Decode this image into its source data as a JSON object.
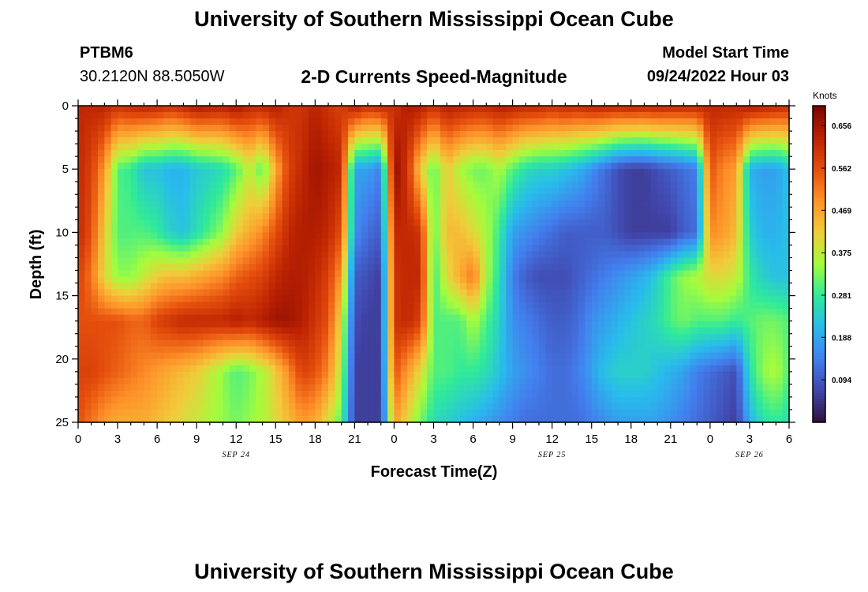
{
  "header": {
    "main_title": "University of Southern Mississippi Ocean Cube",
    "station_id": "PTBM6",
    "station_coords": "30.2120N  88.5050W",
    "chart_title": "2-D Currents Speed-Magnitude",
    "model_start_label": "Model Start Time",
    "model_start_value": "09/24/2022 Hour 03"
  },
  "footer": {
    "title": "University of Southern Mississippi Ocean Cube"
  },
  "chart_data": {
    "type": "heatmap",
    "title": "2-D Currents Speed-Magnitude",
    "xlabel": "Forecast Time(Z)",
    "ylabel": "Depth (ft)",
    "x_range": [
      0,
      54
    ],
    "y_range": [
      0,
      25
    ],
    "x_ticks": [
      0,
      3,
      6,
      9,
      12,
      15,
      18,
      21,
      24,
      27,
      30,
      33,
      36,
      39,
      42,
      45,
      48,
      51,
      54
    ],
    "x_tick_labels": [
      "0",
      "3",
      "6",
      "9",
      "12",
      "15",
      "18",
      "21",
      "0",
      "3",
      "6",
      "9",
      "12",
      "15",
      "18",
      "21",
      "0",
      "3",
      "6"
    ],
    "y_ticks": [
      0,
      5,
      10,
      15,
      20,
      25
    ],
    "y_tick_labels": [
      "0",
      "5",
      "10",
      "15",
      "20",
      "25"
    ],
    "date_labels": [
      {
        "text": "SEP 24",
        "x": 12
      },
      {
        "text": "SEP 25",
        "x": 36
      },
      {
        "text": "SEP 26",
        "x": 51
      }
    ],
    "colorbar": {
      "label": "Knots",
      "range": [
        0.0,
        0.7
      ],
      "ticks": [
        0.094,
        0.188,
        0.281,
        0.375,
        0.469,
        0.562,
        0.656
      ],
      "tick_labels": [
        "0.094",
        "0.188",
        "0.281",
        "0.375",
        "0.469",
        "0.562",
        "0.656"
      ]
    },
    "grid": false,
    "legend": "colorbar-right",
    "x_nodes": [
      0,
      1,
      2,
      3,
      4,
      5,
      6,
      7,
      8,
      9,
      10,
      11,
      12,
      13,
      14,
      15,
      16,
      17,
      18,
      19,
      20,
      21,
      22,
      23,
      24,
      25,
      26,
      27,
      28,
      29,
      30,
      31,
      32,
      33,
      34,
      35,
      36,
      37,
      38,
      39,
      40,
      41,
      42,
      43,
      44,
      45,
      46,
      47,
      48,
      49,
      50,
      51,
      52,
      53,
      54
    ],
    "depth_nodes": [
      0,
      5,
      10,
      13.5,
      17,
      21,
      25
    ],
    "values": [
      [
        0.62,
        0.62,
        0.63,
        0.6,
        0.62,
        0.63,
        0.62,
        0.6,
        0.62,
        0.65,
        0.64,
        0.63,
        0.66,
        0.62,
        0.62,
        0.64,
        0.6,
        0.6,
        0.63,
        0.6,
        0.58,
        0.64,
        0.6,
        0.62,
        0.6,
        0.64,
        0.64,
        0.6,
        0.64,
        0.63,
        0.62,
        0.62,
        0.64,
        0.63,
        0.62,
        0.62,
        0.6,
        0.62,
        0.61,
        0.63,
        0.63,
        0.62,
        0.63,
        0.62,
        0.63,
        0.62,
        0.62,
        0.62,
        0.62,
        0.62,
        0.62,
        0.64,
        0.63,
        0.62,
        0.61
      ],
      [
        0.62,
        0.58,
        0.48,
        0.3,
        0.28,
        0.22,
        0.22,
        0.2,
        0.2,
        0.23,
        0.24,
        0.26,
        0.3,
        0.38,
        0.3,
        0.46,
        0.58,
        0.62,
        0.66,
        0.64,
        0.62,
        0.18,
        0.18,
        0.14,
        0.68,
        0.6,
        0.42,
        0.3,
        0.42,
        0.36,
        0.32,
        0.32,
        0.36,
        0.3,
        0.26,
        0.24,
        0.24,
        0.22,
        0.2,
        0.16,
        0.12,
        0.08,
        0.06,
        0.06,
        0.08,
        0.1,
        0.12,
        0.14,
        0.56,
        0.5,
        0.48,
        0.2,
        0.18,
        0.18,
        0.22
      ],
      [
        0.62,
        0.56,
        0.42,
        0.3,
        0.3,
        0.3,
        0.28,
        0.24,
        0.22,
        0.26,
        0.3,
        0.34,
        0.42,
        0.46,
        0.5,
        0.56,
        0.62,
        0.64,
        0.64,
        0.62,
        0.56,
        0.16,
        0.12,
        0.1,
        0.62,
        0.62,
        0.6,
        0.3,
        0.44,
        0.44,
        0.4,
        0.36,
        0.28,
        0.18,
        0.16,
        0.14,
        0.12,
        0.1,
        0.1,
        0.1,
        0.1,
        0.08,
        0.06,
        0.06,
        0.06,
        0.06,
        0.1,
        0.12,
        0.5,
        0.48,
        0.44,
        0.24,
        0.2,
        0.2,
        0.22
      ],
      [
        0.58,
        0.52,
        0.4,
        0.34,
        0.34,
        0.38,
        0.42,
        0.44,
        0.44,
        0.46,
        0.48,
        0.5,
        0.54,
        0.56,
        0.58,
        0.62,
        0.64,
        0.64,
        0.62,
        0.58,
        0.48,
        0.1,
        0.08,
        0.06,
        0.6,
        0.62,
        0.62,
        0.28,
        0.4,
        0.46,
        0.52,
        0.36,
        0.26,
        0.14,
        0.1,
        0.08,
        0.08,
        0.08,
        0.1,
        0.12,
        0.14,
        0.16,
        0.18,
        0.2,
        0.24,
        0.3,
        0.34,
        0.36,
        0.4,
        0.4,
        0.38,
        0.28,
        0.24,
        0.22,
        0.22
      ],
      [
        0.56,
        0.56,
        0.56,
        0.56,
        0.54,
        0.54,
        0.58,
        0.6,
        0.62,
        0.62,
        0.62,
        0.62,
        0.64,
        0.62,
        0.64,
        0.66,
        0.66,
        0.64,
        0.6,
        0.56,
        0.4,
        0.08,
        0.06,
        0.06,
        0.6,
        0.62,
        0.58,
        0.3,
        0.3,
        0.3,
        0.36,
        0.3,
        0.24,
        0.16,
        0.14,
        0.12,
        0.1,
        0.1,
        0.12,
        0.16,
        0.18,
        0.2,
        0.22,
        0.24,
        0.26,
        0.3,
        0.32,
        0.3,
        0.3,
        0.3,
        0.28,
        0.3,
        0.32,
        0.32,
        0.3
      ],
      [
        0.58,
        0.58,
        0.56,
        0.54,
        0.52,
        0.5,
        0.48,
        0.46,
        0.44,
        0.42,
        0.38,
        0.34,
        0.3,
        0.32,
        0.36,
        0.42,
        0.5,
        0.58,
        0.56,
        0.5,
        0.36,
        0.06,
        0.06,
        0.06,
        0.56,
        0.48,
        0.4,
        0.3,
        0.3,
        0.28,
        0.28,
        0.26,
        0.22,
        0.18,
        0.16,
        0.14,
        0.12,
        0.12,
        0.14,
        0.18,
        0.22,
        0.24,
        0.24,
        0.24,
        0.22,
        0.2,
        0.18,
        0.14,
        0.12,
        0.1,
        0.08,
        0.26,
        0.34,
        0.36,
        0.3
      ],
      [
        0.56,
        0.52,
        0.48,
        0.46,
        0.46,
        0.46,
        0.44,
        0.42,
        0.4,
        0.38,
        0.36,
        0.34,
        0.32,
        0.34,
        0.36,
        0.4,
        0.44,
        0.48,
        0.46,
        0.4,
        0.3,
        0.06,
        0.06,
        0.06,
        0.48,
        0.4,
        0.32,
        0.26,
        0.24,
        0.22,
        0.2,
        0.18,
        0.16,
        0.14,
        0.12,
        0.12,
        0.12,
        0.12,
        0.12,
        0.14,
        0.16,
        0.18,
        0.18,
        0.18,
        0.18,
        0.16,
        0.14,
        0.12,
        0.1,
        0.08,
        0.06,
        0.2,
        0.26,
        0.28,
        0.26
      ]
    ]
  }
}
